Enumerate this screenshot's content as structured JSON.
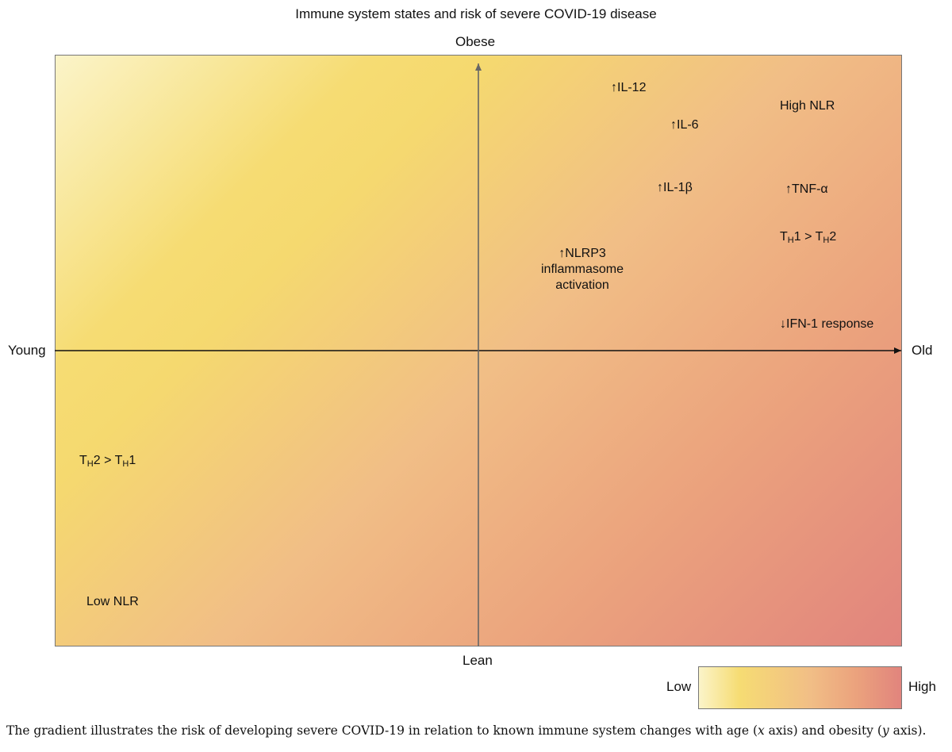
{
  "title": "Immune system states and risk of severe COVID-19 disease",
  "axes": {
    "top": "Obese",
    "bottom": "Lean",
    "left": "Young",
    "right": "Old"
  },
  "annotations": {
    "il12": "↑IL-12",
    "high_nlr": "High NLR",
    "il6": "↑IL-6",
    "il1b": "↑IL-1β",
    "tnfa": "↑TNF-α",
    "th1_gt_th2": {
      "a": "T",
      "a_sub": "H",
      "b": "1 > T",
      "b_sub": "H",
      "c": "2"
    },
    "nlrp3": [
      "↑NLRP3",
      "inflammasome",
      "activation"
    ],
    "ifn1": "↓IFN-1 response",
    "th2_gt_th1": {
      "a": "T",
      "a_sub": "H",
      "b": "2 > T",
      "b_sub": "H",
      "c": "1"
    },
    "low_nlr": "Low NLR"
  },
  "legend": {
    "low": "Low",
    "high": "High",
    "colors": [
      "#fbf4c9",
      "#f6dc73",
      "#f1be86",
      "#eba27d",
      "#e1847d"
    ]
  },
  "caption": {
    "p1": "The gradient illustrates the risk of developing severe COVID-19 in relation to known immune system changes with age (",
    "x": "x",
    "p2": " axis) and obesity (",
    "y": "y",
    "p3": " axis)."
  }
}
